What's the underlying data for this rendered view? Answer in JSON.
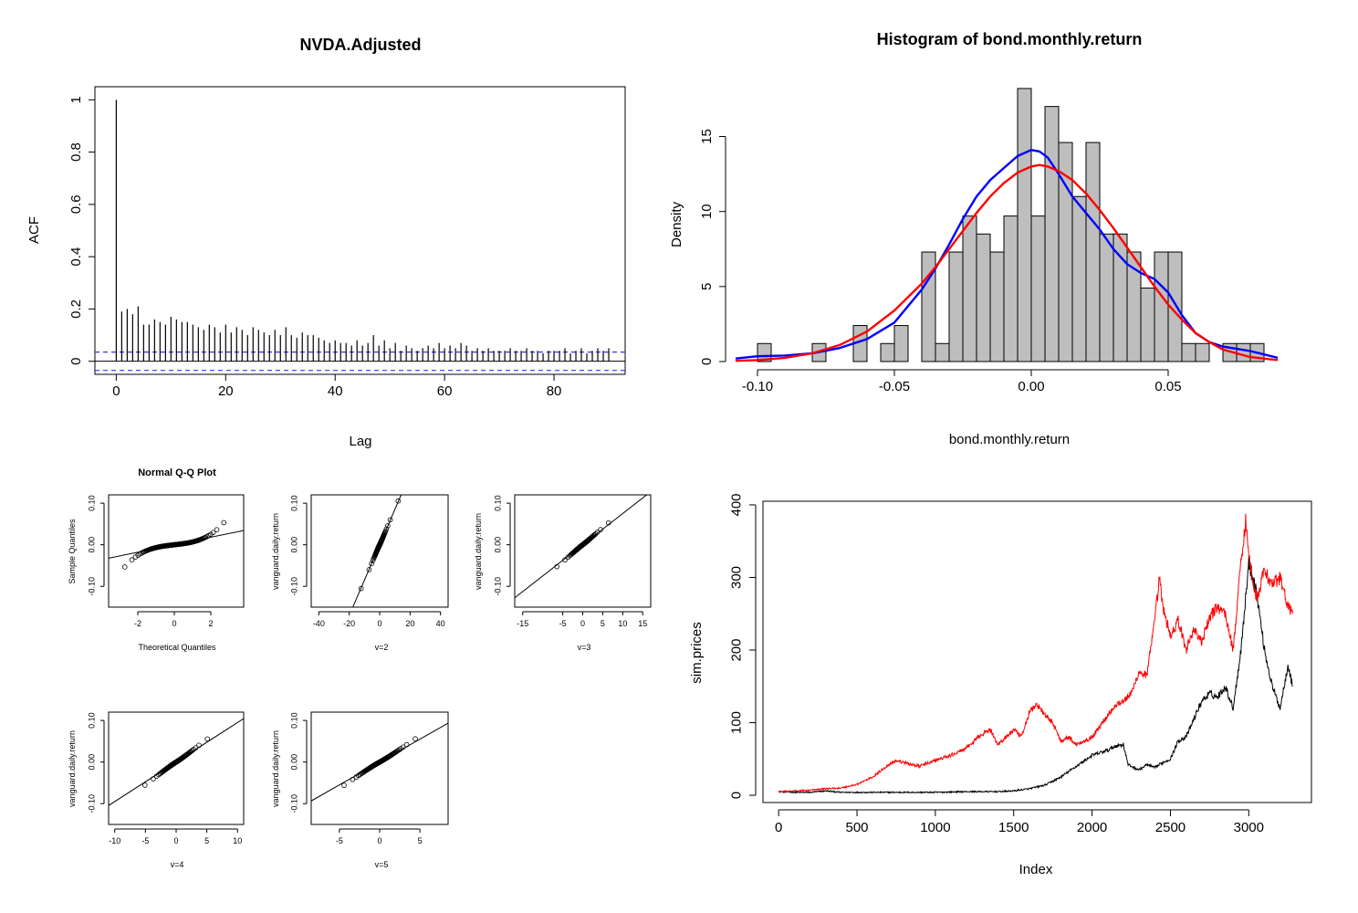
{
  "chart_data": [
    {
      "type": "bar",
      "panel": "acf",
      "title": "NVDA.Adjusted",
      "xlabel": "Lag",
      "ylabel": "ACF",
      "xlim": [
        0,
        93
      ],
      "ylim": [
        -0.05,
        1.05
      ],
      "x_ticks": [
        0,
        20,
        40,
        60,
        80
      ],
      "y_ticks": [
        0.0,
        0.2,
        0.4,
        0.6,
        0.8,
        1.0
      ],
      "confidence_band": [
        -0.035,
        0.035
      ],
      "confidence_color": "#3333ff",
      "lags": [
        0,
        1,
        2,
        3,
        4,
        5,
        6,
        7,
        8,
        9,
        10,
        11,
        12,
        13,
        14,
        15,
        16,
        17,
        18,
        19,
        20,
        21,
        22,
        23,
        24,
        25,
        26,
        27,
        28,
        29,
        30,
        31,
        32,
        33,
        34,
        35,
        36,
        37,
        38,
        39,
        40,
        41,
        42,
        43,
        44,
        45,
        46,
        47,
        48,
        49,
        50,
        51,
        52,
        53,
        54,
        55,
        56,
        57,
        58,
        59,
        60,
        61,
        62,
        63,
        64,
        65,
        66,
        67,
        68,
        69,
        70,
        71,
        72,
        73,
        74,
        75,
        76,
        77,
        78,
        79,
        80,
        81,
        82,
        83,
        84,
        85,
        86,
        87,
        88,
        89,
        90
      ],
      "values": [
        1.0,
        0.19,
        0.2,
        0.18,
        0.21,
        0.14,
        0.14,
        0.16,
        0.15,
        0.14,
        0.17,
        0.16,
        0.15,
        0.15,
        0.14,
        0.13,
        0.12,
        0.14,
        0.13,
        0.11,
        0.14,
        0.11,
        0.13,
        0.12,
        0.1,
        0.13,
        0.12,
        0.11,
        0.1,
        0.12,
        0.1,
        0.13,
        0.1,
        0.09,
        0.11,
        0.1,
        0.1,
        0.09,
        0.08,
        0.07,
        0.08,
        0.07,
        0.07,
        0.06,
        0.08,
        0.06,
        0.07,
        0.1,
        0.06,
        0.08,
        0.05,
        0.07,
        0.04,
        0.06,
        0.05,
        0.04,
        0.05,
        0.06,
        0.05,
        0.07,
        0.05,
        0.06,
        0.05,
        0.07,
        0.06,
        0.04,
        0.05,
        0.04,
        0.05,
        0.04,
        0.04,
        0.04,
        0.05,
        0.04,
        0.04,
        0.05,
        0.04,
        0.04,
        0.03,
        0.04,
        0.04,
        0.04,
        0.05,
        0.03,
        0.04,
        0.05,
        0.03,
        0.04,
        0.05,
        0.04,
        0.05
      ]
    },
    {
      "type": "bar",
      "panel": "histogram",
      "title": "Histogram of bond.monthly.return",
      "xlabel": "bond.monthly.return",
      "ylabel": "Density",
      "xlim": [
        -0.1,
        0.09
      ],
      "ylim": [
        0,
        18.5
      ],
      "x_ticks": [
        -0.1,
        -0.05,
        0.0,
        0.05
      ],
      "x_tick_labels": [
        "-0.10",
        "-0.05",
        "0.00",
        "0.05"
      ],
      "y_ticks": [
        0,
        5,
        10,
        15
      ],
      "bin_start": -0.1,
      "bin_width": 0.005,
      "densities": [
        1.2,
        0,
        0,
        0,
        1.2,
        0,
        0,
        2.4,
        0,
        1.2,
        2.4,
        0,
        7.3,
        1.2,
        7.3,
        9.7,
        8.5,
        7.3,
        9.7,
        18.2,
        9.7,
        17.0,
        14.6,
        11.0,
        14.6,
        8.5,
        8.5,
        7.3,
        4.9,
        7.3,
        7.3,
        1.2,
        1.2,
        0,
        1.2,
        1.2,
        1.2
      ],
      "bar_fill": "#bebebe",
      "series": [
        {
          "name": "",
          "color": "#0000ff",
          "x": [
            -0.108,
            -0.1,
            -0.09,
            -0.08,
            -0.07,
            -0.06,
            -0.05,
            -0.04,
            -0.035,
            -0.03,
            -0.025,
            -0.02,
            -0.015,
            -0.01,
            -0.005,
            0,
            0.003,
            0.006,
            0.01,
            0.015,
            0.02,
            0.025,
            0.03,
            0.035,
            0.04,
            0.045,
            0.05,
            0.055,
            0.06,
            0.065,
            0.07,
            0.08,
            0.09
          ],
          "y": [
            0.2,
            0.35,
            0.4,
            0.55,
            0.9,
            1.5,
            2.6,
            4.8,
            6.2,
            7.8,
            9.5,
            11.0,
            12.1,
            12.9,
            13.7,
            14.1,
            14.0,
            13.6,
            12.5,
            11.0,
            9.9,
            8.8,
            7.5,
            6.5,
            5.9,
            5.5,
            4.6,
            3.1,
            1.9,
            1.3,
            1.0,
            0.7,
            0.25
          ]
        },
        {
          "name": "",
          "color": "#ff0000",
          "x": [
            -0.108,
            -0.1,
            -0.09,
            -0.08,
            -0.07,
            -0.06,
            -0.05,
            -0.04,
            -0.035,
            -0.03,
            -0.025,
            -0.02,
            -0.015,
            -0.01,
            -0.005,
            0,
            0.003,
            0.006,
            0.01,
            0.015,
            0.02,
            0.025,
            0.03,
            0.035,
            0.04,
            0.045,
            0.05,
            0.055,
            0.06,
            0.065,
            0.07,
            0.08,
            0.09
          ],
          "y": [
            0.05,
            0.1,
            0.25,
            0.55,
            1.1,
            2.0,
            3.4,
            5.2,
            6.3,
            7.5,
            8.7,
            9.9,
            11.0,
            11.9,
            12.6,
            13.0,
            13.1,
            13.0,
            12.7,
            12.1,
            11.2,
            10.1,
            8.9,
            7.6,
            6.3,
            5.0,
            3.8,
            2.8,
            1.9,
            1.3,
            0.8,
            0.3,
            0.1
          ]
        }
      ]
    },
    {
      "type": "scatter",
      "panel": "qq-normal",
      "title": "Normal Q-Q Plot",
      "xlabel": "Theoretical Quantiles",
      "ylabel": "Sample Quantiles",
      "xlim": [
        -3.6,
        3.8
      ],
      "ylim": [
        -0.15,
        0.12
      ],
      "x_ticks": [
        -2,
        0,
        2
      ],
      "y_ticks": [
        -0.1,
        0.0,
        0.1
      ],
      "y_tick_labels": [
        "-0.10",
        "0.00",
        "0.10"
      ],
      "dist": "normal",
      "line": {
        "slope": 0.009,
        "intercept": 0.0
      }
    },
    {
      "type": "scatter",
      "panel": "qq-t2",
      "title": "",
      "xlabel": "v=2",
      "ylabel": "vanguard.daily.return",
      "xlim": [
        -45,
        45
      ],
      "ylim": [
        -0.15,
        0.12
      ],
      "x_ticks": [
        -40,
        -20,
        0,
        20,
        40
      ],
      "y_ticks": [
        -0.1,
        0.0,
        0.1
      ],
      "y_tick_labels": [
        "-0.10",
        "0.00",
        "0.10"
      ],
      "dist": "t2",
      "line": {
        "slope": 0.0085,
        "intercept": 0.0
      }
    },
    {
      "type": "scatter",
      "panel": "qq-t3",
      "title": "",
      "xlabel": "v=3",
      "ylabel": "vanguard.daily.return",
      "xlim": [
        -17,
        17
      ],
      "ylim": [
        -0.15,
        0.12
      ],
      "x_ticks": [
        -15,
        -5,
        0,
        5,
        10,
        15
      ],
      "y_ticks": [
        -0.1,
        0.0,
        0.1
      ],
      "y_tick_labels": [
        "-0.10",
        "0.00",
        "0.10"
      ],
      "dist": "t3",
      "line": {
        "slope": 0.0075,
        "intercept": 0.0
      }
    },
    {
      "type": "scatter",
      "panel": "qq-t4",
      "title": "",
      "xlabel": "v=4",
      "ylabel": "vanguard.daily.return",
      "xlim": [
        -11,
        11
      ],
      "ylim": [
        -0.15,
        0.12
      ],
      "x_ticks": [
        -10,
        -5,
        0,
        5,
        10
      ],
      "y_ticks": [
        -0.1,
        0.0,
        0.1
      ],
      "y_tick_labels": [
        "-0.10",
        "0.00",
        "0.10"
      ],
      "dist": "t4",
      "line": {
        "slope": 0.0095,
        "intercept": 0.0
      }
    },
    {
      "type": "scatter",
      "panel": "qq-t5",
      "title": "",
      "xlabel": "v=5",
      "ylabel": "vanguard.daily.return",
      "xlim": [
        -8.5,
        8.5
      ],
      "ylim": [
        -0.15,
        0.12
      ],
      "x_ticks": [
        -5,
        0,
        5
      ],
      "y_ticks": [
        -0.1,
        0.0,
        0.1
      ],
      "y_tick_labels": [
        "-0.10",
        "0.00",
        "0.10"
      ],
      "dist": "t5",
      "line": {
        "slope": 0.011,
        "intercept": 0.0
      }
    },
    {
      "type": "line",
      "panel": "sim-prices",
      "title": "",
      "xlabel": "Index",
      "ylabel": "sim.prices",
      "xlim": [
        -100,
        3400
      ],
      "ylim": [
        -10,
        405
      ],
      "x_ticks": [
        0,
        500,
        1000,
        1500,
        2000,
        2500,
        3000
      ],
      "y_ticks": [
        0,
        100,
        200,
        300,
        400
      ],
      "series": [
        {
          "name": "",
          "color": "#000000",
          "x": [
            0,
            100,
            200,
            300,
            400,
            600,
            800,
            1000,
            1200,
            1400,
            1500,
            1600,
            1700,
            1800,
            1900,
            2000,
            2100,
            2150,
            2200,
            2230,
            2300,
            2350,
            2400,
            2450,
            2500,
            2550,
            2600,
            2650,
            2700,
            2750,
            2800,
            2850,
            2900,
            2950,
            3000,
            3050,
            3100,
            3150,
            3200,
            3250,
            3280
          ],
          "y": [
            5,
            4,
            4,
            6,
            4,
            4,
            4,
            4,
            5,
            5,
            6,
            9,
            14,
            25,
            40,
            55,
            62,
            68,
            70,
            42,
            35,
            42,
            38,
            45,
            50,
            75,
            80,
            105,
            130,
            140,
            135,
            150,
            120,
            200,
            320,
            280,
            200,
            150,
            120,
            180,
            150
          ]
        },
        {
          "name": "",
          "color": "#ff0000",
          "x": [
            0,
            100,
            200,
            300,
            400,
            500,
            600,
            700,
            750,
            800,
            900,
            1000,
            1100,
            1200,
            1300,
            1350,
            1400,
            1450,
            1500,
            1550,
            1600,
            1650,
            1700,
            1750,
            1800,
            1850,
            1900,
            1950,
            2000,
            2050,
            2100,
            2150,
            2200,
            2250,
            2300,
            2350,
            2400,
            2430,
            2450,
            2500,
            2550,
            2600,
            2650,
            2700,
            2750,
            2800,
            2850,
            2900,
            2950,
            2980,
            3000,
            3050,
            3100,
            3150,
            3200,
            3250,
            3280
          ],
          "y": [
            5,
            6,
            7,
            9,
            10,
            15,
            25,
            42,
            48,
            45,
            40,
            48,
            55,
            65,
            85,
            90,
            70,
            80,
            90,
            80,
            115,
            125,
            110,
            100,
            75,
            80,
            70,
            75,
            80,
            95,
            110,
            125,
            130,
            140,
            170,
            165,
            240,
            300,
            260,
            220,
            240,
            200,
            230,
            210,
            245,
            260,
            250,
            200,
            320,
            380,
            330,
            270,
            310,
            290,
            300,
            260,
            250
          ]
        }
      ]
    }
  ]
}
